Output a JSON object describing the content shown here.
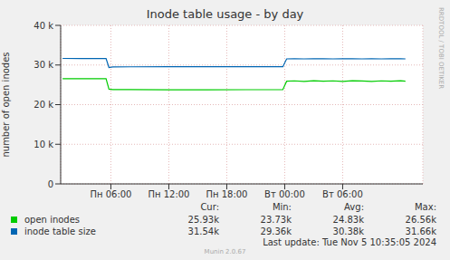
{
  "chart_data": {
    "type": "line",
    "title": "Inode table usage - by day",
    "y_label": "number of open inodes",
    "x": [
      1,
      3,
      5,
      5.5,
      5.8,
      6.2,
      8,
      12,
      16,
      20,
      23.8,
      24.2,
      25,
      26,
      27,
      28,
      29,
      30,
      31,
      32,
      33,
      34,
      35,
      36,
      36.5
    ],
    "series": [
      {
        "name": "open inodes",
        "color": "#00cc00",
        "values": [
          26560,
          26550,
          26560,
          26550,
          23900,
          23800,
          23780,
          23750,
          23760,
          23770,
          23780,
          25900,
          26000,
          25850,
          26050,
          25900,
          26000,
          25880,
          26050,
          25950,
          25880,
          26000,
          25900,
          26050,
          25930
        ]
      },
      {
        "name": "inode table size",
        "color": "#0066b3",
        "values": [
          31660,
          31640,
          31650,
          31640,
          29360,
          29500,
          29540,
          29550,
          29550,
          29560,
          29560,
          31540,
          31560,
          31540,
          31550,
          31560,
          31540,
          31550,
          31560,
          31540,
          31550,
          31540,
          31550,
          31560,
          31540
        ]
      }
    ],
    "xlim": [
      0.8,
      38.3
    ],
    "xticks": [
      {
        "value": 6,
        "label": "Пн 06:00"
      },
      {
        "value": 12,
        "label": "Пн 12:00"
      },
      {
        "value": 18,
        "label": "Пн 18:00"
      },
      {
        "value": 24,
        "label": "Вт 00:00"
      },
      {
        "value": 30,
        "label": "Вт 06:00"
      }
    ],
    "ylim": [
      0,
      40000
    ],
    "yticks": [
      0,
      {
        "value": 10000,
        "label": "10 k"
      },
      {
        "value": 20000,
        "label": "20 k"
      },
      {
        "value": 30000,
        "label": "30 k"
      },
      {
        "value": 40000,
        "label": "40 k"
      }
    ],
    "grid": true,
    "legend_table": {
      "columns": [
        "Cur:",
        "Min:",
        "Avg:",
        "Max:"
      ],
      "rows": [
        [
          {
            "value": 25930,
            "label": "25.93k"
          },
          {
            "value": 23730,
            "label": "23.73k"
          },
          {
            "value": 24830,
            "label": "24.83k"
          },
          {
            "value": 26560,
            "label": "26.56k"
          }
        ],
        [
          {
            "value": 31540,
            "label": "31.54k"
          },
          {
            "value": 29360,
            "label": "29.36k"
          },
          {
            "value": 30380,
            "label": "30.38k"
          },
          {
            "value": 31660,
            "label": "31.66k"
          }
        ]
      ]
    },
    "last_update": "Last update: Tue Nov  5 10:35:05 2024",
    "footer": "Munin 2.0.67",
    "side_text": "RRDTOOL / TOBI OETIKER"
  }
}
